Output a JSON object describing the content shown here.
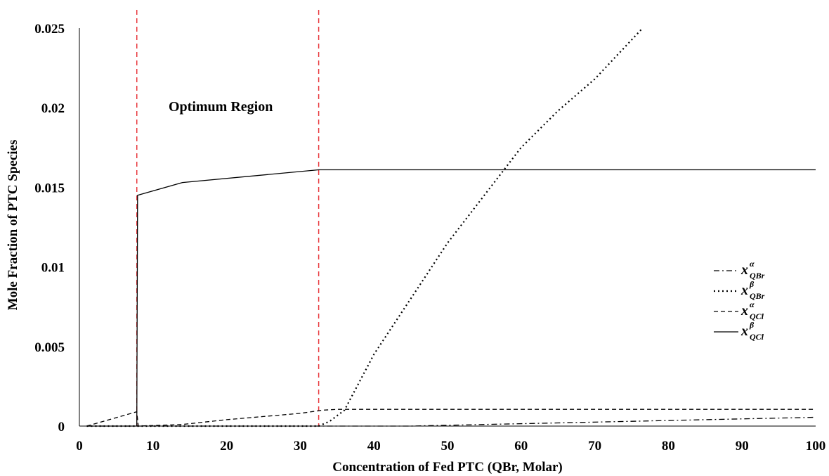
{
  "chart_data": {
    "type": "line",
    "title": "",
    "xlabel": "Concentration of Fed PTC (QBr, Molar)",
    "ylabel": "Mole Fraction of PTC Species",
    "xlim": [
      0,
      100
    ],
    "ylim": [
      0,
      0.025
    ],
    "x_ticks": [
      "0",
      "10",
      "20",
      "30",
      "40",
      "50",
      "60",
      "70",
      "80",
      "90",
      "100"
    ],
    "y_ticks": [
      "0",
      "0.005",
      "0.01",
      "0.015",
      "0.02",
      "0.025"
    ],
    "grid": false,
    "legend_position": "right",
    "annotation": "Optimum Region",
    "vlines": [
      {
        "x": 7.8,
        "color": "#e8383d",
        "style": "dashed"
      },
      {
        "x": 32.5,
        "color": "#e8383d",
        "style": "dashed"
      }
    ],
    "series": [
      {
        "legend": {
          "base": "x",
          "sup": "α",
          "sub": "QBr"
        },
        "style": "dashdot",
        "points": [
          [
            1,
            0
          ],
          [
            8,
            0
          ],
          [
            32.5,
            0
          ],
          [
            45,
            0
          ],
          [
            55,
            0.0001
          ],
          [
            65,
            0.0002
          ],
          [
            75,
            0.0003
          ],
          [
            85,
            0.0004
          ],
          [
            100,
            0.00055
          ]
        ]
      },
      {
        "legend": {
          "base": "x",
          "sup": "β",
          "sub": "QBr"
        },
        "style": "dotted",
        "points": [
          [
            1,
            0
          ],
          [
            7.8,
            0
          ],
          [
            32.5,
            0
          ],
          [
            34,
            0.0003
          ],
          [
            36,
            0.001
          ],
          [
            40,
            0.0045
          ],
          [
            45,
            0.008
          ],
          [
            50,
            0.0115
          ],
          [
            55,
            0.0145
          ],
          [
            60,
            0.0175
          ],
          [
            65,
            0.0198
          ],
          [
            70,
            0.0218
          ],
          [
            76.5,
            0.025
          ]
        ]
      },
      {
        "legend": {
          "base": "x",
          "sup": "α",
          "sub": "QCl"
        },
        "style": "dashed",
        "points": [
          [
            1,
            0
          ],
          [
            7.8,
            0.0009
          ],
          [
            8,
            0
          ],
          [
            14,
            0.0001
          ],
          [
            20,
            0.0004
          ],
          [
            25,
            0.0006
          ],
          [
            30,
            0.0008
          ],
          [
            33,
            0.001
          ],
          [
            35,
            0.00105
          ],
          [
            100,
            0.00105
          ]
        ]
      },
      {
        "legend": {
          "base": "x",
          "sup": "β",
          "sub": "QCl"
        },
        "style": "solid",
        "points": [
          [
            1,
            0
          ],
          [
            7.8,
            0
          ],
          [
            7.9,
            0.0145
          ],
          [
            14,
            0.0153
          ],
          [
            32.5,
            0.0161
          ],
          [
            100,
            0.0161
          ]
        ]
      }
    ]
  }
}
